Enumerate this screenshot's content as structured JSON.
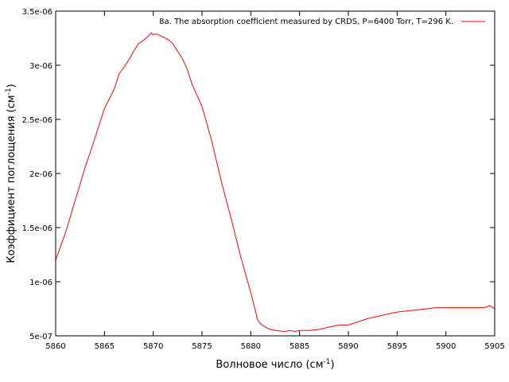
{
  "chart_data": {
    "type": "line",
    "xlabel": "Волновое число (см",
    "xlabel_sup": "-1",
    "xlabel_tail": ")",
    "ylabel": "Коэффициент поглощения (см",
    "ylabel_sup": "-1",
    "ylabel_tail": ")",
    "xlim": [
      5860,
      5905
    ],
    "ylim": [
      5e-07,
      3.5e-06
    ],
    "x_ticks": [
      5860,
      5865,
      5870,
      5875,
      5880,
      5885,
      5890,
      5895,
      5900,
      5905
    ],
    "x_tick_labels": [
      "5860",
      "5865",
      "5870",
      "5875",
      "5880",
      "5885",
      "5890",
      "5895",
      "5900",
      "5905"
    ],
    "y_ticks": [
      5e-07,
      1e-06,
      1.5e-06,
      2e-06,
      2.5e-06,
      3e-06,
      3.5e-06
    ],
    "y_tick_labels": [
      "5e-07",
      "1e-06",
      "1.5e-06",
      "2e-06",
      "2.5e-06",
      "3e-06",
      "3.5e-06"
    ],
    "grid": false,
    "legend_position": "top-right",
    "series": [
      {
        "name": "8a. The absorption coefficient measured by CRDS, P=6400 Torr, T=296 K.",
        "color": "#ff0000",
        "x": [
          5860,
          5861,
          5862,
          5863,
          5864,
          5865,
          5866,
          5866.5,
          5867,
          5867.5,
          5868,
          5868.5,
          5869,
          5869.5,
          5869.8,
          5870,
          5870.3,
          5870.6,
          5871,
          5871.5,
          5872,
          5872.5,
          5873,
          5873.5,
          5874,
          5874.5,
          5875,
          5876,
          5877,
          5878,
          5879,
          5880,
          5880.7,
          5881,
          5881.5,
          5882,
          5882.5,
          5883,
          5883.5,
          5884,
          5884.5,
          5885,
          5886,
          5887,
          5888,
          5889,
          5890,
          5891,
          5892,
          5893,
          5894,
          5895,
          5896,
          5897,
          5898,
          5899,
          5900,
          5901,
          5902,
          5903,
          5904,
          5904.5,
          5905
        ],
        "y": [
          1.2e-06,
          1.45e-06,
          1.75e-06,
          2.05e-06,
          2.32e-06,
          2.6e-06,
          2.78e-06,
          2.92e-06,
          2.98e-06,
          3.05e-06,
          3.13e-06,
          3.2e-06,
          3.23e-06,
          3.27e-06,
          3.3e-06,
          3.28e-06,
          3.29e-06,
          3.28e-06,
          3.26e-06,
          3.24e-06,
          3.2e-06,
          3.13e-06,
          3.06e-06,
          2.96e-06,
          2.82e-06,
          2.72e-06,
          2.62e-06,
          2.3e-06,
          1.92e-06,
          1.58e-06,
          1.22e-06,
          9e-07,
          6.5e-07,
          6.1e-07,
          5.8e-07,
          5.6e-07,
          5.5e-07,
          5.45e-07,
          5.4e-07,
          5.5e-07,
          5.4e-07,
          5.5e-07,
          5.5e-07,
          5.6e-07,
          5.8e-07,
          6e-07,
          6e-07,
          6.3e-07,
          6.6e-07,
          6.8e-07,
          7e-07,
          7.2e-07,
          7.3e-07,
          7.4e-07,
          7.5e-07,
          7.6e-07,
          7.6e-07,
          7.6e-07,
          7.6e-07,
          7.6e-07,
          7.6e-07,
          7.8e-07,
          7.5e-07
        ]
      }
    ]
  }
}
